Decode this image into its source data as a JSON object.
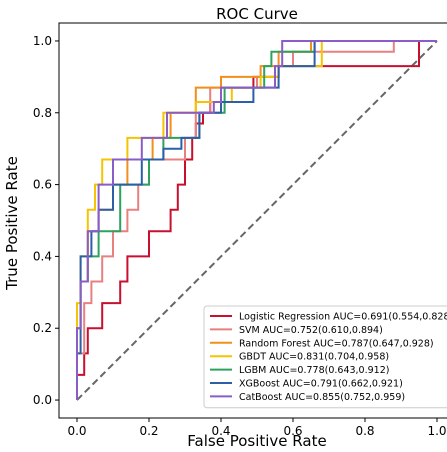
{
  "chart_data": {
    "type": "line",
    "title": "ROC Curve",
    "xlabel": "False Positive Rate",
    "ylabel": "True Positive Rate",
    "xlim": [
      -0.05,
      1.05
    ],
    "ylim": [
      -0.05,
      1.05
    ],
    "xticks": [
      "0.0",
      "0.2",
      "0.4",
      "0.6",
      "0.8",
      "1.0"
    ],
    "yticks": [
      "0.0",
      "0.2",
      "0.4",
      "0.6",
      "0.8",
      "1.0"
    ],
    "tick_values": [
      0,
      0.2,
      0.4,
      0.6,
      0.8,
      1.0
    ],
    "grid": false,
    "legend_position": "lower-right",
    "reference_line": {
      "x": [
        0,
        1
      ],
      "y": [
        0,
        1
      ],
      "color": "#666666",
      "style": "dashed"
    },
    "series": [
      {
        "name": "Logistic Regression",
        "auc_label": "AUC=0.691(0.554,0.828)",
        "color": "#c8102e",
        "x": [
          0.0,
          0.0,
          0.02,
          0.02,
          0.03,
          0.03,
          0.07,
          0.07,
          0.12,
          0.12,
          0.14,
          0.14,
          0.2,
          0.2,
          0.26,
          0.26,
          0.28,
          0.28,
          0.3,
          0.3,
          0.32,
          0.32,
          0.33,
          0.33,
          0.35,
          0.35,
          0.37,
          0.37,
          0.4,
          0.4,
          0.49,
          0.49,
          0.56,
          0.56,
          0.95,
          0.95,
          1.0
        ],
        "y": [
          0.0,
          0.07,
          0.07,
          0.13,
          0.13,
          0.2,
          0.2,
          0.27,
          0.27,
          0.33,
          0.33,
          0.4,
          0.4,
          0.47,
          0.47,
          0.53,
          0.53,
          0.6,
          0.6,
          0.67,
          0.67,
          0.73,
          0.73,
          0.77,
          0.77,
          0.8,
          0.8,
          0.83,
          0.83,
          0.87,
          0.87,
          0.9,
          0.9,
          0.93,
          0.93,
          1.0,
          1.0
        ]
      },
      {
        "name": "SVM",
        "auc_label": "AUC=0.752(0.610,0.894)",
        "color": "#e88080",
        "x": [
          0.0,
          0.0,
          0.02,
          0.02,
          0.04,
          0.04,
          0.07,
          0.07,
          0.1,
          0.1,
          0.14,
          0.14,
          0.17,
          0.17,
          0.2,
          0.2,
          0.3,
          0.3,
          0.33,
          0.33,
          0.37,
          0.37,
          0.5,
          0.5,
          0.56,
          0.56,
          0.6,
          0.6,
          0.88,
          0.88,
          1.0
        ],
        "y": [
          0.0,
          0.13,
          0.13,
          0.27,
          0.27,
          0.33,
          0.33,
          0.4,
          0.4,
          0.47,
          0.47,
          0.53,
          0.53,
          0.6,
          0.6,
          0.67,
          0.67,
          0.73,
          0.73,
          0.8,
          0.8,
          0.87,
          0.87,
          0.9,
          0.9,
          0.93,
          0.93,
          0.97,
          0.97,
          1.0,
          1.0
        ]
      },
      {
        "name": "Random Forest",
        "auc_label": "AUC=0.787(0.647,0.928)",
        "color": "#f28e1c",
        "x": [
          0.0,
          0.0,
          0.01,
          0.01,
          0.03,
          0.03,
          0.06,
          0.06,
          0.1,
          0.1,
          0.14,
          0.14,
          0.21,
          0.21,
          0.26,
          0.26,
          0.33,
          0.33,
          0.4,
          0.4,
          0.51,
          0.51,
          0.56,
          0.56,
          0.65,
          0.65,
          1.0
        ],
        "y": [
          0.0,
          0.2,
          0.2,
          0.33,
          0.33,
          0.47,
          0.47,
          0.53,
          0.53,
          0.6,
          0.6,
          0.67,
          0.67,
          0.73,
          0.73,
          0.8,
          0.8,
          0.87,
          0.87,
          0.9,
          0.9,
          0.93,
          0.93,
          0.97,
          0.97,
          1.0,
          1.0
        ]
      },
      {
        "name": "GBDT",
        "auc_label": "AUC=0.831(0.704,0.958)",
        "color": "#f5c400",
        "x": [
          0.0,
          0.0,
          0.01,
          0.01,
          0.03,
          0.03,
          0.05,
          0.05,
          0.07,
          0.07,
          0.14,
          0.14,
          0.24,
          0.24,
          0.33,
          0.33,
          0.43,
          0.43,
          0.51,
          0.51,
          0.56,
          0.56,
          0.68,
          0.68,
          1.0
        ],
        "y": [
          0.0,
          0.27,
          0.27,
          0.4,
          0.4,
          0.53,
          0.53,
          0.6,
          0.6,
          0.67,
          0.67,
          0.73,
          0.73,
          0.8,
          0.8,
          0.83,
          0.83,
          0.87,
          0.87,
          0.9,
          0.9,
          0.93,
          0.93,
          1.0,
          1.0
        ]
      },
      {
        "name": "LGBM",
        "auc_label": "AUC=0.778(0.643,0.912)",
        "color": "#2ca25f",
        "x": [
          0.0,
          0.0,
          0.01,
          0.01,
          0.03,
          0.03,
          0.06,
          0.06,
          0.12,
          0.12,
          0.2,
          0.2,
          0.24,
          0.24,
          0.34,
          0.34,
          0.41,
          0.41,
          0.52,
          0.52,
          0.54,
          0.54,
          0.66,
          0.66,
          1.0
        ],
        "y": [
          0.0,
          0.2,
          0.2,
          0.33,
          0.33,
          0.4,
          0.4,
          0.47,
          0.47,
          0.6,
          0.6,
          0.67,
          0.67,
          0.73,
          0.73,
          0.8,
          0.8,
          0.87,
          0.87,
          0.93,
          0.93,
          0.97,
          0.97,
          1.0,
          1.0
        ]
      },
      {
        "name": "XGBoost",
        "auc_label": "AUC=0.791(0.662,0.921)",
        "color": "#2b5fa8",
        "x": [
          0.0,
          0.0,
          0.01,
          0.01,
          0.04,
          0.04,
          0.06,
          0.06,
          0.1,
          0.1,
          0.18,
          0.18,
          0.24,
          0.24,
          0.29,
          0.29,
          0.34,
          0.34,
          0.4,
          0.4,
          0.49,
          0.49,
          0.56,
          0.56,
          0.66,
          0.66,
          1.0
        ],
        "y": [
          0.0,
          0.13,
          0.13,
          0.4,
          0.4,
          0.47,
          0.47,
          0.53,
          0.53,
          0.6,
          0.6,
          0.67,
          0.67,
          0.7,
          0.7,
          0.73,
          0.73,
          0.8,
          0.8,
          0.83,
          0.83,
          0.87,
          0.87,
          0.93,
          0.93,
          1.0,
          1.0
        ]
      },
      {
        "name": "CatBoost",
        "auc_label": "AUC=0.855(0.752,0.959)",
        "color": "#8a5cc8",
        "x": [
          0.0,
          0.0,
          0.01,
          0.01,
          0.03,
          0.03,
          0.06,
          0.06,
          0.1,
          0.1,
          0.18,
          0.18,
          0.25,
          0.25,
          0.38,
          0.38,
          0.4,
          0.4,
          0.55,
          0.55,
          0.57,
          0.57,
          1.0
        ],
        "y": [
          0.0,
          0.2,
          0.2,
          0.33,
          0.33,
          0.47,
          0.47,
          0.6,
          0.6,
          0.67,
          0.67,
          0.73,
          0.73,
          0.8,
          0.8,
          0.83,
          0.83,
          0.87,
          0.87,
          0.93,
          0.93,
          1.0,
          1.0
        ]
      }
    ]
  }
}
